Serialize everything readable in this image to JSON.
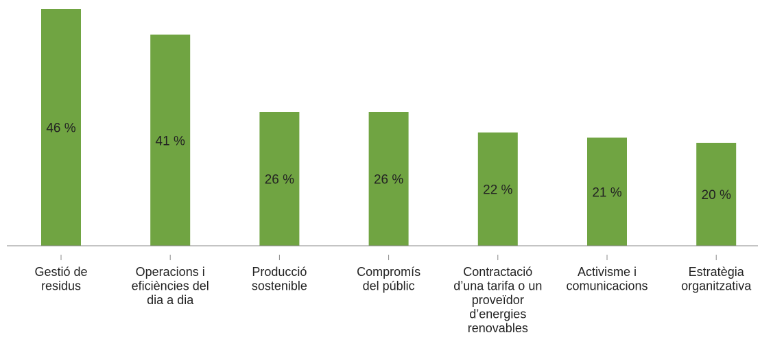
{
  "chart_data": {
    "type": "bar",
    "title": "",
    "xlabel": "",
    "ylabel": "",
    "ylim": [
      0,
      50
    ],
    "grid": false,
    "colors": {
      "bar": "#70A442",
      "axis": "#888888",
      "text": "#222222"
    },
    "categories": [
      [
        "Gestió de",
        "residus"
      ],
      [
        "Operacions i",
        "eficiències del",
        "dia a dia"
      ],
      [
        "Producció",
        "sostenible"
      ],
      [
        "Compromís",
        "del públic"
      ],
      [
        "Contractació",
        "d’una tarifa o un",
        "proveïdor",
        "d’energies",
        "renovables"
      ],
      [
        "Activisme i",
        "comunicacions"
      ],
      [
        "Estratègia",
        "organitzativa"
      ]
    ],
    "values": [
      46,
      41,
      26,
      26,
      22,
      21,
      20
    ],
    "value_labels": [
      "46 %",
      "41 %",
      "26 %",
      "26 %",
      "22 %",
      "21 %",
      "20 %"
    ]
  }
}
